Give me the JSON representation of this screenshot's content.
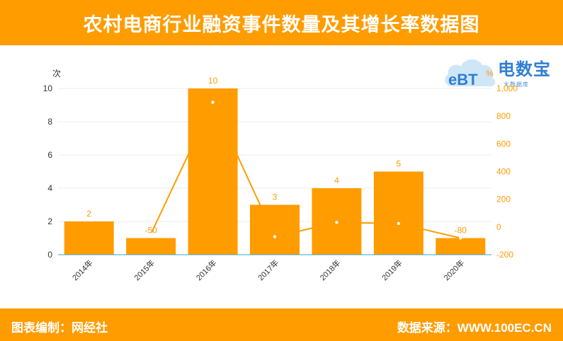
{
  "header": {
    "title": "农村电商行业融资事件数量及其增长率数据图"
  },
  "footer": {
    "left": "图表编制：网经社",
    "right": "数据来源：WWW.100EC.CN"
  },
  "logo": {
    "name": "电数宝",
    "sub": "大数据库",
    "mark": "eBT"
  },
  "colors": {
    "accent": "#ff9c00",
    "bar": "#ff9c00",
    "line": "#ff9c00",
    "logo": "#2f7fd0"
  },
  "chart_data": {
    "type": "bar",
    "categories": [
      "2014年",
      "2015年",
      "2016年",
      "2017年",
      "2018年",
      "2019年",
      "2020年"
    ],
    "series": [
      {
        "type": "bar",
        "values": [
          2,
          1,
          10,
          3,
          4,
          5,
          1
        ]
      },
      {
        "type": "line",
        "values": [
          null,
          -50,
          900,
          -70,
          33,
          25,
          -80
        ]
      }
    ],
    "bar_labels": [
      "2",
      "-50",
      "10",
      "3",
      "4",
      "5",
      "-80"
    ],
    "y_left": {
      "label": "次",
      "min": 0,
      "max": 10,
      "ticks": [
        0,
        2,
        4,
        6,
        8,
        10
      ]
    },
    "y_right": {
      "label": "%",
      "min": -200,
      "max": 1000,
      "ticks": [
        -200,
        0,
        200,
        400,
        600,
        800,
        1000
      ],
      "tick_labels": [
        "-200",
        "0",
        "200",
        "400",
        "600",
        "800",
        "1,000"
      ]
    },
    "grid": true,
    "legend": "none"
  }
}
